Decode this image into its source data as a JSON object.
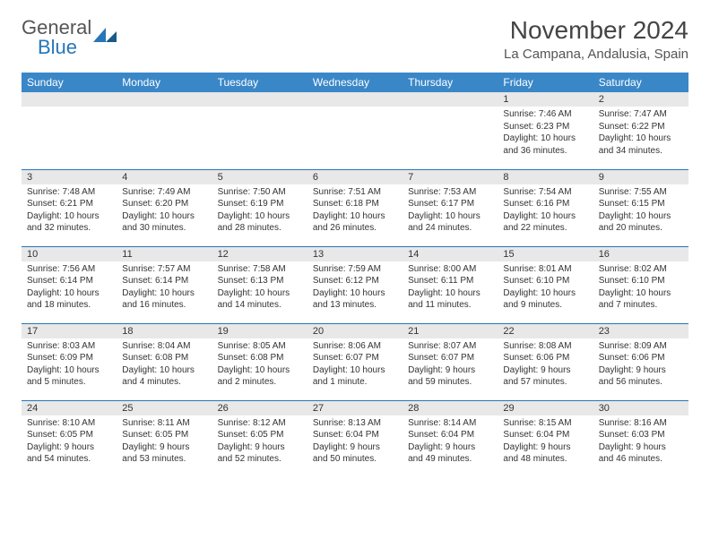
{
  "logo": {
    "general": "General",
    "blue": "Blue"
  },
  "title": "November 2024",
  "subtitle": "La Campana, Andalusia, Spain",
  "colors": {
    "header_bg": "#3a87c8",
    "header_text": "#ffffff",
    "daynum_bg": "#e8e8e8",
    "border": "#2676b8",
    "text": "#333333",
    "logo_blue": "#2676b8",
    "logo_gray": "#555555"
  },
  "dayNames": [
    "Sunday",
    "Monday",
    "Tuesday",
    "Wednesday",
    "Thursday",
    "Friday",
    "Saturday"
  ],
  "weeks": [
    [
      null,
      null,
      null,
      null,
      null,
      {
        "num": "1",
        "sunrise": "Sunrise: 7:46 AM",
        "sunset": "Sunset: 6:23 PM",
        "daylight": "Daylight: 10 hours and 36 minutes."
      },
      {
        "num": "2",
        "sunrise": "Sunrise: 7:47 AM",
        "sunset": "Sunset: 6:22 PM",
        "daylight": "Daylight: 10 hours and 34 minutes."
      }
    ],
    [
      {
        "num": "3",
        "sunrise": "Sunrise: 7:48 AM",
        "sunset": "Sunset: 6:21 PM",
        "daylight": "Daylight: 10 hours and 32 minutes."
      },
      {
        "num": "4",
        "sunrise": "Sunrise: 7:49 AM",
        "sunset": "Sunset: 6:20 PM",
        "daylight": "Daylight: 10 hours and 30 minutes."
      },
      {
        "num": "5",
        "sunrise": "Sunrise: 7:50 AM",
        "sunset": "Sunset: 6:19 PM",
        "daylight": "Daylight: 10 hours and 28 minutes."
      },
      {
        "num": "6",
        "sunrise": "Sunrise: 7:51 AM",
        "sunset": "Sunset: 6:18 PM",
        "daylight": "Daylight: 10 hours and 26 minutes."
      },
      {
        "num": "7",
        "sunrise": "Sunrise: 7:53 AM",
        "sunset": "Sunset: 6:17 PM",
        "daylight": "Daylight: 10 hours and 24 minutes."
      },
      {
        "num": "8",
        "sunrise": "Sunrise: 7:54 AM",
        "sunset": "Sunset: 6:16 PM",
        "daylight": "Daylight: 10 hours and 22 minutes."
      },
      {
        "num": "9",
        "sunrise": "Sunrise: 7:55 AM",
        "sunset": "Sunset: 6:15 PM",
        "daylight": "Daylight: 10 hours and 20 minutes."
      }
    ],
    [
      {
        "num": "10",
        "sunrise": "Sunrise: 7:56 AM",
        "sunset": "Sunset: 6:14 PM",
        "daylight": "Daylight: 10 hours and 18 minutes."
      },
      {
        "num": "11",
        "sunrise": "Sunrise: 7:57 AM",
        "sunset": "Sunset: 6:14 PM",
        "daylight": "Daylight: 10 hours and 16 minutes."
      },
      {
        "num": "12",
        "sunrise": "Sunrise: 7:58 AM",
        "sunset": "Sunset: 6:13 PM",
        "daylight": "Daylight: 10 hours and 14 minutes."
      },
      {
        "num": "13",
        "sunrise": "Sunrise: 7:59 AM",
        "sunset": "Sunset: 6:12 PM",
        "daylight": "Daylight: 10 hours and 13 minutes."
      },
      {
        "num": "14",
        "sunrise": "Sunrise: 8:00 AM",
        "sunset": "Sunset: 6:11 PM",
        "daylight": "Daylight: 10 hours and 11 minutes."
      },
      {
        "num": "15",
        "sunrise": "Sunrise: 8:01 AM",
        "sunset": "Sunset: 6:10 PM",
        "daylight": "Daylight: 10 hours and 9 minutes."
      },
      {
        "num": "16",
        "sunrise": "Sunrise: 8:02 AM",
        "sunset": "Sunset: 6:10 PM",
        "daylight": "Daylight: 10 hours and 7 minutes."
      }
    ],
    [
      {
        "num": "17",
        "sunrise": "Sunrise: 8:03 AM",
        "sunset": "Sunset: 6:09 PM",
        "daylight": "Daylight: 10 hours and 5 minutes."
      },
      {
        "num": "18",
        "sunrise": "Sunrise: 8:04 AM",
        "sunset": "Sunset: 6:08 PM",
        "daylight": "Daylight: 10 hours and 4 minutes."
      },
      {
        "num": "19",
        "sunrise": "Sunrise: 8:05 AM",
        "sunset": "Sunset: 6:08 PM",
        "daylight": "Daylight: 10 hours and 2 minutes."
      },
      {
        "num": "20",
        "sunrise": "Sunrise: 8:06 AM",
        "sunset": "Sunset: 6:07 PM",
        "daylight": "Daylight: 10 hours and 1 minute."
      },
      {
        "num": "21",
        "sunrise": "Sunrise: 8:07 AM",
        "sunset": "Sunset: 6:07 PM",
        "daylight": "Daylight: 9 hours and 59 minutes."
      },
      {
        "num": "22",
        "sunrise": "Sunrise: 8:08 AM",
        "sunset": "Sunset: 6:06 PM",
        "daylight": "Daylight: 9 hours and 57 minutes."
      },
      {
        "num": "23",
        "sunrise": "Sunrise: 8:09 AM",
        "sunset": "Sunset: 6:06 PM",
        "daylight": "Daylight: 9 hours and 56 minutes."
      }
    ],
    [
      {
        "num": "24",
        "sunrise": "Sunrise: 8:10 AM",
        "sunset": "Sunset: 6:05 PM",
        "daylight": "Daylight: 9 hours and 54 minutes."
      },
      {
        "num": "25",
        "sunrise": "Sunrise: 8:11 AM",
        "sunset": "Sunset: 6:05 PM",
        "daylight": "Daylight: 9 hours and 53 minutes."
      },
      {
        "num": "26",
        "sunrise": "Sunrise: 8:12 AM",
        "sunset": "Sunset: 6:05 PM",
        "daylight": "Daylight: 9 hours and 52 minutes."
      },
      {
        "num": "27",
        "sunrise": "Sunrise: 8:13 AM",
        "sunset": "Sunset: 6:04 PM",
        "daylight": "Daylight: 9 hours and 50 minutes."
      },
      {
        "num": "28",
        "sunrise": "Sunrise: 8:14 AM",
        "sunset": "Sunset: 6:04 PM",
        "daylight": "Daylight: 9 hours and 49 minutes."
      },
      {
        "num": "29",
        "sunrise": "Sunrise: 8:15 AM",
        "sunset": "Sunset: 6:04 PM",
        "daylight": "Daylight: 9 hours and 48 minutes."
      },
      {
        "num": "30",
        "sunrise": "Sunrise: 8:16 AM",
        "sunset": "Sunset: 6:03 PM",
        "daylight": "Daylight: 9 hours and 46 minutes."
      }
    ]
  ]
}
